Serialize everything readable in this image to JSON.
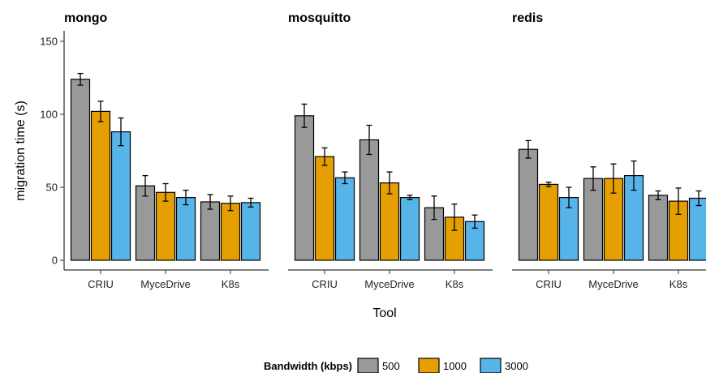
{
  "chart_data": {
    "type": "bar",
    "xlabel": "Tool",
    "ylabel": "migration time (s)",
    "ylim": [
      0,
      150
    ],
    "yticks": [
      0,
      50,
      100,
      150
    ],
    "categories": [
      "CRIU",
      "MyceDrive",
      "K8s"
    ],
    "legend": {
      "title": "Bandwidth (kbps)",
      "placement": "bottom",
      "entries": [
        {
          "label": "500",
          "color": "#999999"
        },
        {
          "label": "1000",
          "color": "#E69F00"
        },
        {
          "label": "3000",
          "color": "#56B4E9"
        }
      ]
    },
    "panels": [
      {
        "title": "mongo",
        "series": [
          {
            "name": "500",
            "values": [
              124,
              51,
              40
            ],
            "err": [
              4,
              7,
              5
            ]
          },
          {
            "name": "1000",
            "values": [
              102,
              46.5,
              39
            ],
            "err": [
              7,
              6,
              5
            ]
          },
          {
            "name": "3000",
            "values": [
              88,
              43,
              39.5
            ],
            "err": [
              9.5,
              5,
              3
            ]
          }
        ]
      },
      {
        "title": "mosquitto",
        "series": [
          {
            "name": "500",
            "values": [
              99,
              82.5,
              36
            ],
            "err": [
              8,
              10,
              8
            ]
          },
          {
            "name": "1000",
            "values": [
              71,
              53,
              29.5
            ],
            "err": [
              6,
              7.5,
              9
            ]
          },
          {
            "name": "3000",
            "values": [
              56.5,
              43,
              26.5
            ],
            "err": [
              4,
              1.5,
              4.5
            ]
          }
        ]
      },
      {
        "title": "redis",
        "series": [
          {
            "name": "500",
            "values": [
              76,
              56,
              44.5
            ],
            "err": [
              6,
              8,
              3
            ]
          },
          {
            "name": "1000",
            "values": [
              52,
              56,
              40.5
            ],
            "err": [
              1.5,
              10,
              9
            ]
          },
          {
            "name": "3000",
            "values": [
              43,
              58,
              42.5
            ],
            "err": [
              7,
              10,
              5
            ]
          }
        ]
      }
    ]
  }
}
